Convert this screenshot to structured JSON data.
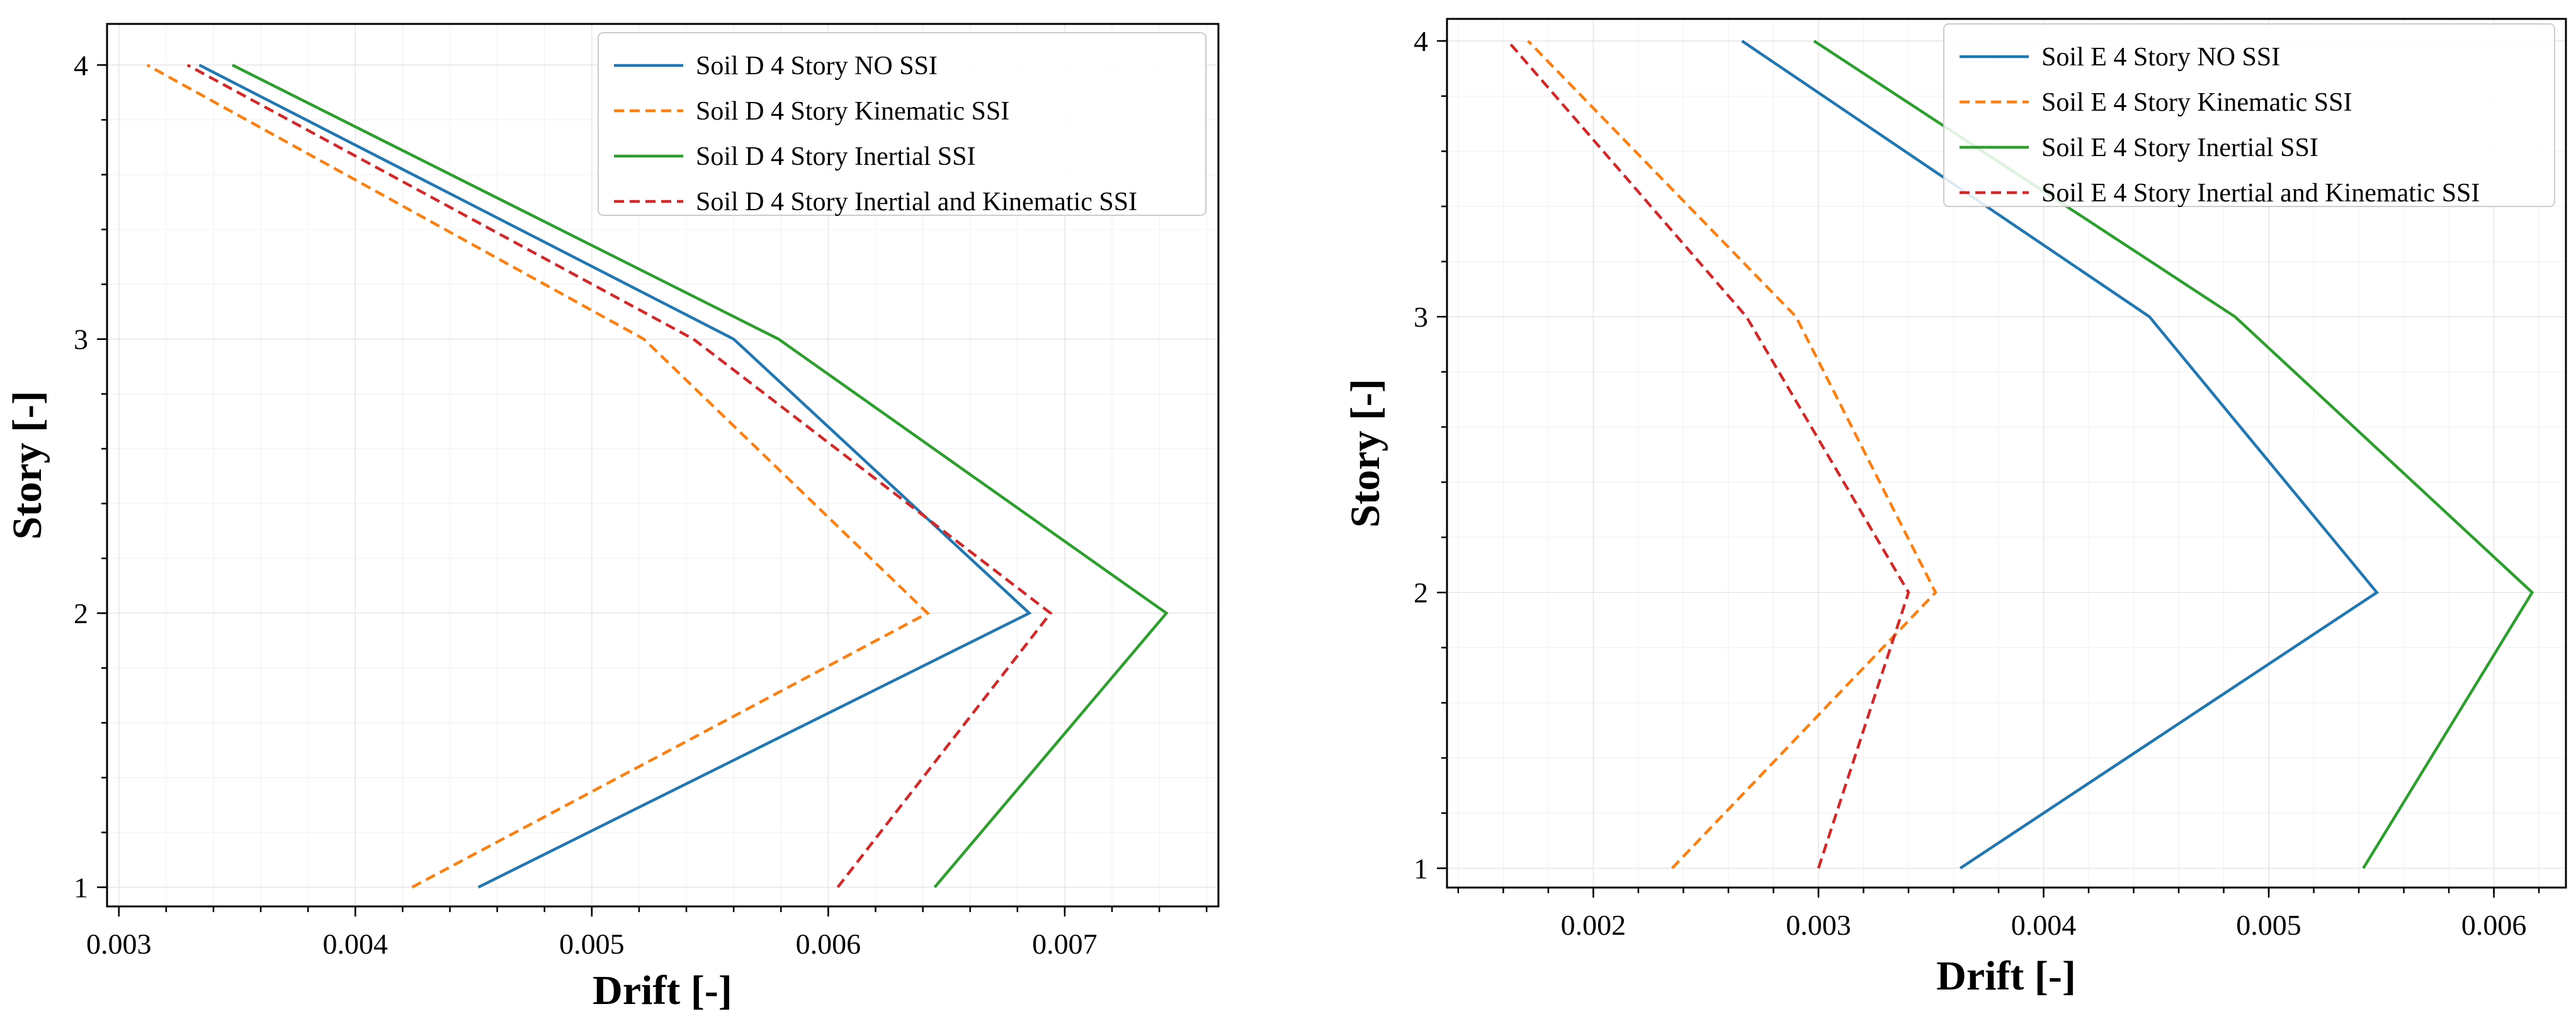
{
  "chart_data": [
    {
      "type": "line",
      "title": "",
      "xlabel": "Drift [-]",
      "ylabel": "Story [-]",
      "xlim": [
        0.00295,
        0.00765
      ],
      "ylim": [
        0.93,
        4.15
      ],
      "xticks": [
        0.003,
        0.004,
        0.005,
        0.006,
        0.007
      ],
      "xtick_labels": [
        "0.003",
        "0.004",
        "0.005",
        "0.006",
        "0.007"
      ],
      "yticks": [
        1,
        2,
        3,
        4
      ],
      "ytick_labels": [
        "1",
        "2",
        "3",
        "4"
      ],
      "grid": true,
      "legend_position": "top-right",
      "series": [
        {
          "name": "Soil D 4 Story NO SSI",
          "color": "#1f77b4",
          "dash": "solid",
          "x": [
            0.00452,
            0.00685,
            0.0056,
            0.00334
          ],
          "y": [
            1,
            2,
            3,
            4
          ]
        },
        {
          "name": "Soil D 4 Story Kinematic SSI",
          "color": "#ff7f0e",
          "dash": "dashed",
          "x": [
            0.00424,
            0.00642,
            0.00522,
            0.00312
          ],
          "y": [
            1,
            2,
            3,
            4
          ]
        },
        {
          "name": "Soil D 4 Story Inertial SSI",
          "color": "#2ca02c",
          "dash": "solid",
          "x": [
            0.00645,
            0.00743,
            0.00579,
            0.00348
          ],
          "y": [
            1,
            2,
            3,
            4
          ]
        },
        {
          "name": "Soil D 4 Story Inertial and Kinematic SSI",
          "color": "#d62728",
          "dash": "dashed",
          "x": [
            0.00604,
            0.00694,
            0.00543,
            0.00329
          ],
          "y": [
            1,
            2,
            3,
            4
          ]
        }
      ]
    },
    {
      "type": "line",
      "title": "",
      "xlabel": "Drift [-]",
      "ylabel": "Story [-]",
      "xlim": [
        0.00135,
        0.00632
      ],
      "ylim": [
        0.93,
        4.08
      ],
      "xticks": [
        0.002,
        0.003,
        0.004,
        0.005,
        0.006
      ],
      "xtick_labels": [
        "0.002",
        "0.003",
        "0.004",
        "0.005",
        "0.006"
      ],
      "yticks": [
        1,
        2,
        3,
        4
      ],
      "ytick_labels": [
        "1",
        "2",
        "3",
        "4"
      ],
      "grid": true,
      "legend_position": "top-right",
      "series": [
        {
          "name": "Soil E 4 Story NO SSI",
          "color": "#1f77b4",
          "dash": "solid",
          "x": [
            0.00363,
            0.00548,
            0.00447,
            0.00266
          ],
          "y": [
            1,
            2,
            3,
            4
          ]
        },
        {
          "name": "Soil E 4 Story Kinematic SSI",
          "color": "#ff7f0e",
          "dash": "dashed",
          "x": [
            0.00235,
            0.00352,
            0.0029,
            0.00171
          ],
          "y": [
            1,
            2,
            3,
            4
          ]
        },
        {
          "name": "Soil E 4 Story Inertial SSI",
          "color": "#2ca02c",
          "dash": "solid",
          "x": [
            0.00542,
            0.00617,
            0.00485,
            0.00298
          ],
          "y": [
            1,
            2,
            3,
            4
          ]
        },
        {
          "name": "Soil E 4 Story Inertial and Kinematic SSI",
          "color": "#d62728",
          "dash": "dashed",
          "x": [
            0.003,
            0.0034,
            0.00268,
            0.00162
          ],
          "y": [
            1,
            2,
            3,
            4
          ]
        }
      ]
    }
  ]
}
